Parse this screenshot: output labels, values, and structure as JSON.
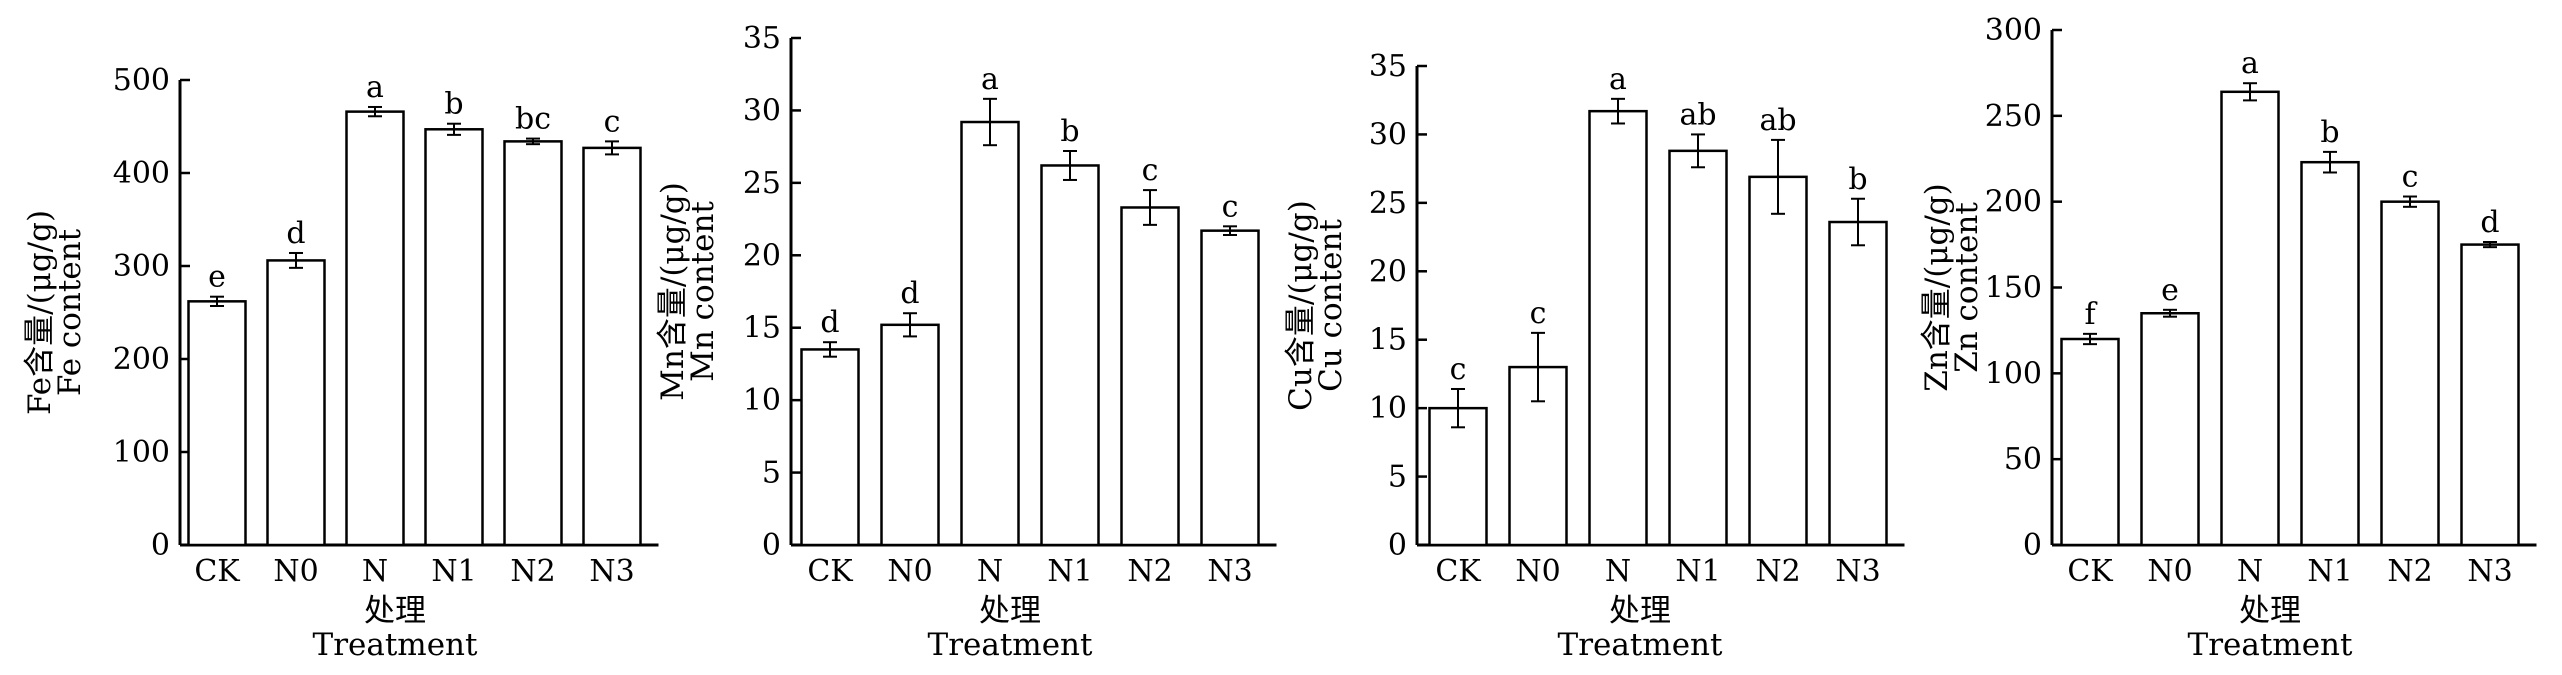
{
  "chart_data": [
    {
      "type": "bar",
      "categories": [
        "CK",
        "N0",
        "N",
        "N1",
        "N2",
        "N3"
      ],
      "values": [
        262,
        306,
        466,
        447,
        434,
        427
      ],
      "errors": [
        5,
        8,
        5,
        6,
        3,
        7
      ],
      "letters": [
        "e",
        "d",
        "a",
        "b",
        "bc",
        "c"
      ],
      "ylim": [
        0,
        500
      ],
      "yticks": [
        "0",
        "100",
        "200",
        "300",
        "400",
        "500"
      ],
      "ylabel_cn": "Fe含量/(μg/g)",
      "ylabel_en": "Fe content",
      "xlabel_cn": "处理",
      "xlabel_en": "Treatment"
    },
    {
      "type": "bar",
      "categories": [
        "CK",
        "N0",
        "N",
        "N1",
        "N2",
        "N3"
      ],
      "values": [
        13.5,
        15.2,
        29.2,
        26.2,
        23.3,
        21.7
      ],
      "errors": [
        0.5,
        0.8,
        1.6,
        1.0,
        1.2,
        0.3
      ],
      "letters": [
        "d",
        "d",
        "a",
        "b",
        "c",
        "c"
      ],
      "ylim": [
        0,
        35
      ],
      "yticks": [
        "0",
        "5",
        "10",
        "15",
        "20",
        "25",
        "30",
        "35"
      ],
      "ylabel_cn": "Mn含量/(μg/g)",
      "ylabel_en": "Mn content",
      "xlabel_cn": "处理",
      "xlabel_en": "Treatment"
    },
    {
      "type": "bar",
      "categories": [
        "CK",
        "N0",
        "N",
        "N1",
        "N2",
        "N3"
      ],
      "values": [
        10.0,
        13.0,
        31.7,
        28.8,
        26.9,
        23.6
      ],
      "errors": [
        1.4,
        2.5,
        0.9,
        1.2,
        2.7,
        1.7
      ],
      "letters": [
        "c",
        "c",
        "a",
        "ab",
        "ab",
        "b"
      ],
      "ylim": [
        0,
        35
      ],
      "yticks": [
        "0",
        "5",
        "10",
        "15",
        "20",
        "25",
        "30",
        "35"
      ],
      "ylabel_cn": "Cu含量/(μg/g)",
      "ylabel_en": "Cu content",
      "xlabel_cn": "处理",
      "xlabel_en": "Treatment"
    },
    {
      "type": "bar",
      "categories": [
        "CK",
        "N0",
        "N",
        "N1",
        "N2",
        "N3"
      ],
      "values": [
        120,
        135,
        264,
        223,
        200,
        175
      ],
      "errors": [
        3,
        2,
        5,
        6,
        3,
        1.5
      ],
      "letters": [
        "f",
        "e",
        "a",
        "b",
        "c",
        "d"
      ],
      "ylim": [
        0,
        300
      ],
      "yticks": [
        "0",
        "50",
        "100",
        "150",
        "200",
        "250",
        "300"
      ],
      "ylabel_cn": "Zn含量/(μg/g)",
      "ylabel_en": "Zn content",
      "xlabel_cn": "处理",
      "xlabel_en": "Treatment"
    }
  ]
}
